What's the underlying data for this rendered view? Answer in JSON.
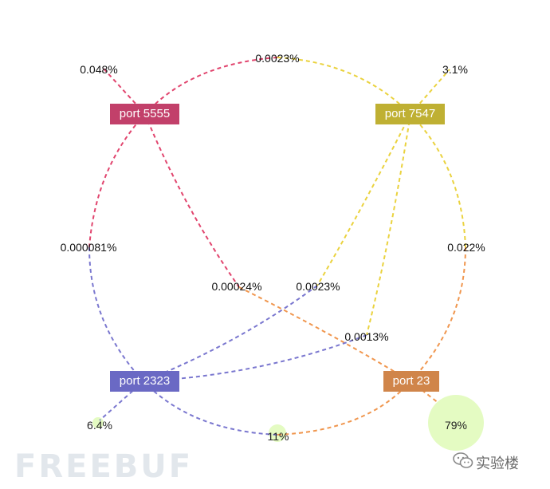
{
  "nodes": {
    "port5555": {
      "label": "port 5555",
      "color": "#c2406a"
    },
    "port7547": {
      "label": "port 7547",
      "color": "#bfb033"
    },
    "port2323": {
      "label": "port 2323",
      "color": "#6a69c4"
    },
    "port23": {
      "label": "port 23",
      "color": "#d0854a"
    }
  },
  "edge_labels": {
    "e5555_self": "0.048%",
    "e5555_7547": "0.0023%",
    "e7547_self": "3.1%",
    "e5555_2323": "0.000081%",
    "e7547_23": "0.022%",
    "e5555_23": "0.00024%",
    "e7547_2323": "0.0023%",
    "e2323_7547": "0.0013%"
  },
  "bubbles": {
    "b2323": "6.4%",
    "b23": "79%",
    "b_between": "11%"
  },
  "bubble_color": "#e4fbc2",
  "watermark": {
    "left": "FREEBUF",
    "right": "实验楼",
    "icon": "wechat-icon"
  }
}
